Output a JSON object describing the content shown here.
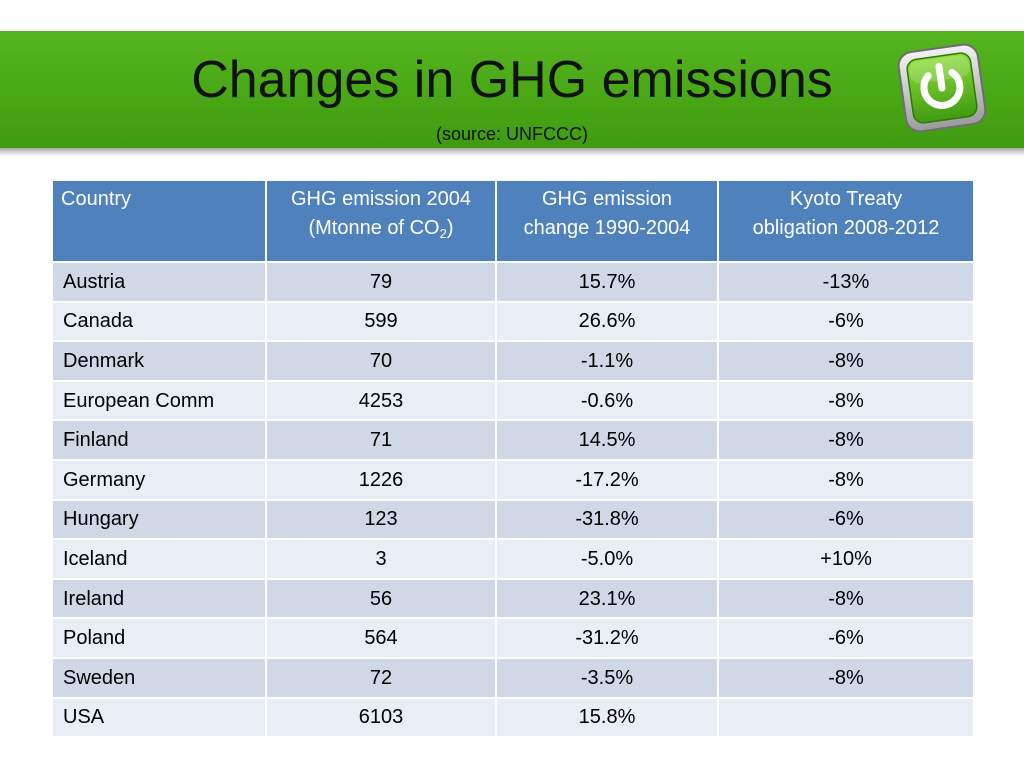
{
  "slide": {
    "title": "Changes in GHG emissions",
    "subtitle": "(source: UNFCCC)",
    "icon": "power-button-icon",
    "colors": {
      "banner": "#4aa81a",
      "table_header": "#4f81bd",
      "row_odd": "#d0d8e8",
      "row_even": "#e9edf4"
    }
  },
  "table": {
    "headers": {
      "country": "Country",
      "emission_2004_line1": "GHG emission 2004",
      "emission_2004_line2_prefix": "(Mtonne of CO",
      "emission_2004_sub": "2",
      "emission_2004_line2_suffix": ")",
      "change_line1": "GHG emission",
      "change_line2": "change 1990-2004",
      "kyoto_line1": "Kyoto Treaty",
      "kyoto_line2": "obligation 2008-2012"
    },
    "rows": [
      {
        "country": "Austria",
        "emission_2004": "79",
        "change": "15.7%",
        "kyoto": "-13%"
      },
      {
        "country": "Canada",
        "emission_2004": "599",
        "change": "26.6%",
        "kyoto": "-6%"
      },
      {
        "country": "Denmark",
        "emission_2004": "70",
        "change": "-1.1%",
        "kyoto": "-8%"
      },
      {
        "country": "European Comm",
        "emission_2004": "4253",
        "change": "-0.6%",
        "kyoto": "-8%"
      },
      {
        "country": "Finland",
        "emission_2004": "71",
        "change": "14.5%",
        "kyoto": "-8%"
      },
      {
        "country": "Germany",
        "emission_2004": "1226",
        "change": "-17.2%",
        "kyoto": "-8%"
      },
      {
        "country": "Hungary",
        "emission_2004": "123",
        "change": "-31.8%",
        "kyoto": "-6%"
      },
      {
        "country": "Iceland",
        "emission_2004": "3",
        "change": "-5.0%",
        "kyoto": "+10%"
      },
      {
        "country": "Ireland",
        "emission_2004": "56",
        "change": "23.1%",
        "kyoto": "-8%"
      },
      {
        "country": "Poland",
        "emission_2004": "564",
        "change": "-31.2%",
        "kyoto": "-6%"
      },
      {
        "country": "Sweden",
        "emission_2004": "72",
        "change": "-3.5%",
        "kyoto": "-8%"
      },
      {
        "country": "USA",
        "emission_2004": "6103",
        "change": "15.8%",
        "kyoto": ""
      }
    ]
  }
}
